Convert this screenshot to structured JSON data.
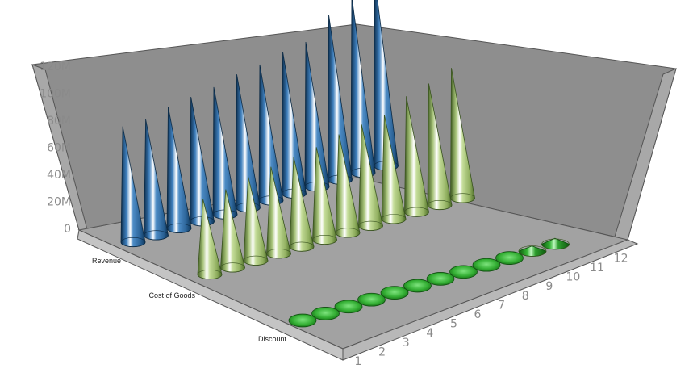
{
  "chart_data": {
    "type": "bar",
    "style": "3d-cone",
    "title": "",
    "xlabel": "",
    "ylabel": "",
    "ylim": [
      0,
      120000000
    ],
    "y_ticks": [
      "0",
      "20M",
      "40M",
      "60M",
      "80M",
      "100M",
      "120M"
    ],
    "categories": [
      "1",
      "2",
      "3",
      "4",
      "5",
      "6",
      "7",
      "8",
      "9",
      "10",
      "11",
      "12"
    ],
    "series": [
      {
        "name": "Revenue",
        "color": "#3a78b2",
        "values": [
          80000000,
          80000000,
          84000000,
          86000000,
          88000000,
          92000000,
          94000000,
          98000000,
          100000000,
          114000000,
          122000000,
          130000000
        ]
      },
      {
        "name": "Cost of Goods",
        "color": "#b8d08a",
        "values": [
          52000000,
          54000000,
          58000000,
          60000000,
          62000000,
          64000000,
          68000000,
          70000000,
          72000000,
          80000000,
          84000000,
          90000000
        ]
      },
      {
        "name": "Discount",
        "color": "#2fa82f",
        "values": [
          0,
          0,
          0,
          0,
          500000,
          1000000,
          1500000,
          2000000,
          2500000,
          3000000,
          3500000,
          4000000
        ]
      }
    ],
    "grid": false,
    "legend": "none"
  }
}
